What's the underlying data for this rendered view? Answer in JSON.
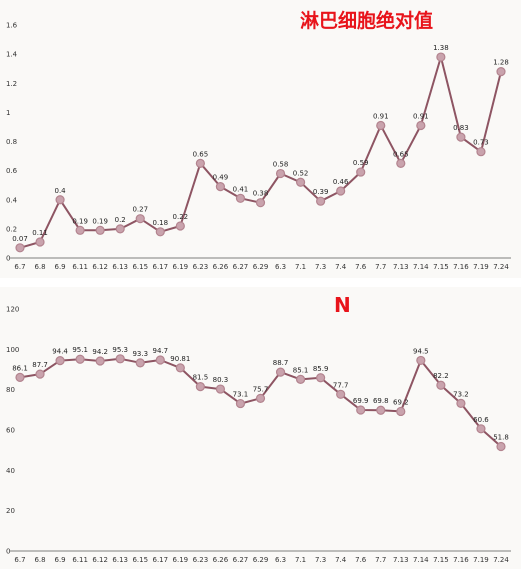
{
  "colors": {
    "line": "#8e5563",
    "marker_fill": "#c9a3ad",
    "marker_stroke": "#b3848f",
    "title": "#e8141b",
    "background": "#faf9f7"
  },
  "chart_data": [
    {
      "type": "line",
      "title": "淋巴细胞绝对值",
      "categories": [
        "6.7",
        "6.8",
        "6.9",
        "6.11",
        "6.12",
        "6.13",
        "6.15",
        "6.17",
        "6.19",
        "6.23",
        "6.26",
        "6.27",
        "6.29",
        "6.3",
        "7.1",
        "7.3",
        "7.4",
        "7.6",
        "7.7",
        "7.13",
        "7.14",
        "7.15",
        "7.16",
        "7.19",
        "7.24"
      ],
      "values": [
        0.07,
        0.11,
        0.4,
        0.19,
        0.19,
        0.2,
        0.27,
        0.18,
        0.22,
        0.65,
        0.49,
        0.41,
        0.38,
        0.58,
        0.52,
        0.39,
        0.46,
        0.59,
        0.91,
        0.65,
        0.91,
        1.38,
        0.83,
        0.73,
        1.28
      ],
      "yticks": [
        "0",
        "0.2",
        "0.4",
        "0.6",
        "0.8",
        "1",
        "1.2",
        "1.4",
        "1.6"
      ],
      "ylim": [
        0,
        1.6
      ],
      "grid": false,
      "legend": false
    },
    {
      "type": "line",
      "title": "N",
      "categories": [
        "6.7",
        "6.8",
        "6.9",
        "6.11",
        "6.12",
        "6.13",
        "6.15",
        "6.17",
        "6.19",
        "6.23",
        "6.26",
        "6.27",
        "6.29",
        "6.3",
        "7.1",
        "7.3",
        "7.4",
        "7.6",
        "7.7",
        "7.13",
        "7.14",
        "7.15",
        "7.16",
        "7.19",
        "7.24"
      ],
      "values": [
        86.1,
        87.7,
        94.4,
        95.1,
        94.2,
        95.3,
        93.3,
        94.7,
        90.81,
        81.5,
        80.3,
        73.1,
        75.7,
        88.7,
        85.1,
        85.9,
        77.7,
        69.9,
        69.8,
        69.2,
        94.5,
        82.2,
        73.2,
        60.6,
        51.8
      ],
      "yticks": [
        "0",
        "20",
        "40",
        "60",
        "80",
        "100",
        "120"
      ],
      "ylim": [
        0,
        120
      ],
      "grid": false,
      "legend": false
    }
  ]
}
